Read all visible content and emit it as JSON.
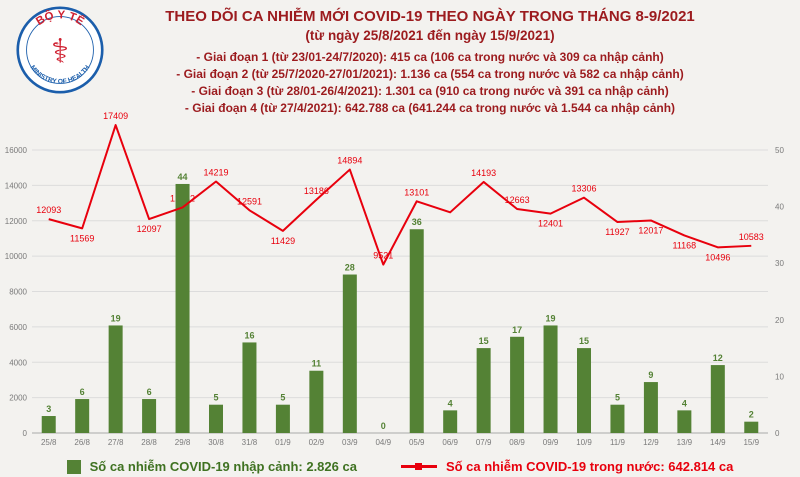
{
  "logo": {
    "line1": "BỘ Y TẾ",
    "line2": "MINISTRY OF HEALTH",
    "symbol": "medical-caduceus-icon"
  },
  "header": {
    "title": "THEO DÕI CA NHIỄM MỚI COVID-19 THEO NGÀY TRONG THÁNG 8-9/2021",
    "subtitle": "(từ ngày 25/8/2021 đến ngày 15/9/2021)",
    "phases": [
      "- Giai đoạn 1 (từ 23/01-24/7/2020): 415 ca (106 ca trong nước và 309 ca nhập cảnh)",
      "- Giai đoạn 2 (từ 25/7/2020-27/01/2021): 1.136 ca (554 ca trong nước và 582 ca nhập cảnh)",
      "- Giai đoạn 3 (từ 28/01-26/4/2021): 1.301 ca (910 ca trong nước và 391 ca nhập cảnh)",
      "- Giai đoạn 4 (từ 27/4/2021): 642.788 ca (641.244 ca trong nước và 1.544 ca nhập cảnh)"
    ]
  },
  "chart_data": {
    "type": "bar",
    "subtype": "bar+line combo, dual axis",
    "categories": [
      "25/8",
      "26/8",
      "27/8",
      "28/8",
      "29/8",
      "30/8",
      "31/8",
      "01/9",
      "02/9",
      "03/9",
      "04/9",
      "05/9",
      "06/9",
      "07/9",
      "08/9",
      "09/9",
      "10/9",
      "11/9",
      "12/9",
      "13/9",
      "14/9",
      "15/9"
    ],
    "series": [
      {
        "name": "Số ca nhiễm COVID-19 nhập cảnh",
        "type": "bar",
        "axis": "right",
        "color": "#548235",
        "values": [
          3,
          6,
          19,
          6,
          44,
          5,
          16,
          5,
          11,
          28,
          0,
          36,
          4,
          15,
          17,
          19,
          15,
          5,
          9,
          4,
          12,
          2
        ]
      },
      {
        "name": "Số ca nhiễm COVID-19 trong nước",
        "type": "line",
        "axis": "left",
        "color": "#e8000d",
        "values": [
          12093,
          11569,
          17409,
          12097,
          12752,
          14219,
          12591,
          11429,
          13186,
          14894,
          9521,
          13101,
          12477,
          14193,
          12663,
          12401,
          13306,
          11927,
          12017,
          11168,
          10496,
          10583
        ]
      }
    ],
    "line_label_placement": [
      "above",
      "below",
      "above",
      "below",
      "above",
      "above",
      "above",
      "below",
      "above",
      "above",
      "above",
      "above",
      "none",
      "above",
      "above",
      "below",
      "above",
      "below",
      "below",
      "below",
      "below",
      "above"
    ],
    "left_axis": {
      "min": 0,
      "max": 16000,
      "ticks": [
        0,
        2000,
        4000,
        6000,
        8000,
        10000,
        12000,
        14000,
        16000
      ]
    },
    "right_axis": {
      "min": 0,
      "max": 50,
      "ticks": [
        0,
        10,
        20,
        30,
        40,
        50
      ]
    },
    "grid": true,
    "legend_position": "bottom"
  },
  "legend": {
    "bar_label": "Số ca nhiễm COVID-19 nhập cảnh: 2.826 ca",
    "line_label": "Số ca nhiễm COVID-19 trong nước: 642.814 ca"
  }
}
